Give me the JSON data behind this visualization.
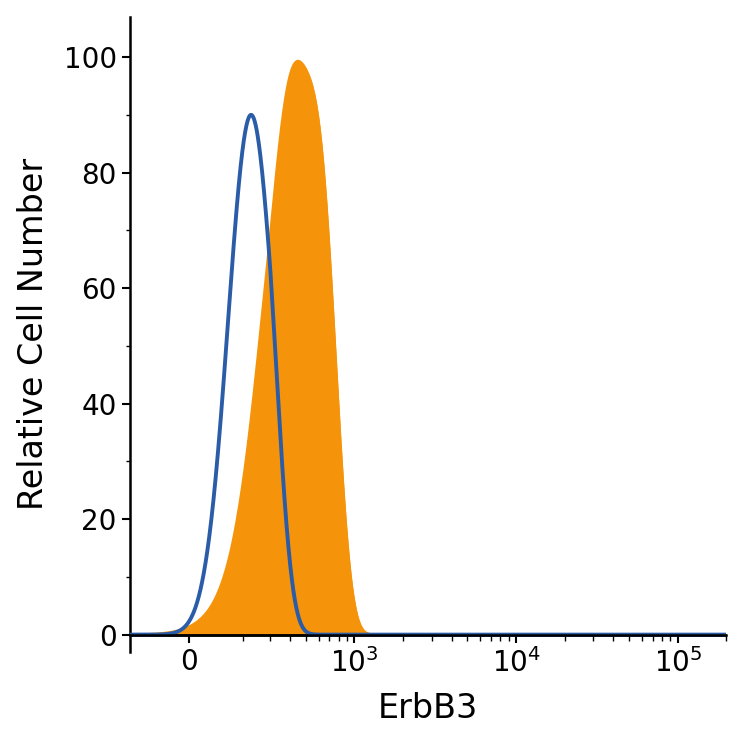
{
  "title": "",
  "xlabel": "ErbB3",
  "ylabel": "Relative Cell Number",
  "ylim": [
    -3,
    107
  ],
  "yticks": [
    0,
    20,
    40,
    60,
    80,
    100
  ],
  "blue_color": "#2b5ca8",
  "orange_color": "#f5940a",
  "background_color": "#ffffff",
  "tick_fontsize": 20,
  "label_fontsize": 24,
  "blue_linewidth": 2.8,
  "orange_linewidth": 1.5,
  "symlog_linthresh": 300,
  "symlog_linscale": 0.45,
  "xlim_min": -220,
  "xlim_max": 200000,
  "blue_peak_x": 230,
  "blue_peak_y": 90,
  "blue_sigma": 85,
  "orange_peak_x": 550,
  "orange_peak_y": 91,
  "orange_sigma": 190,
  "orange_shoulder_x": 350,
  "orange_shoulder_y": 35,
  "orange_shoulder_sigma": 95
}
